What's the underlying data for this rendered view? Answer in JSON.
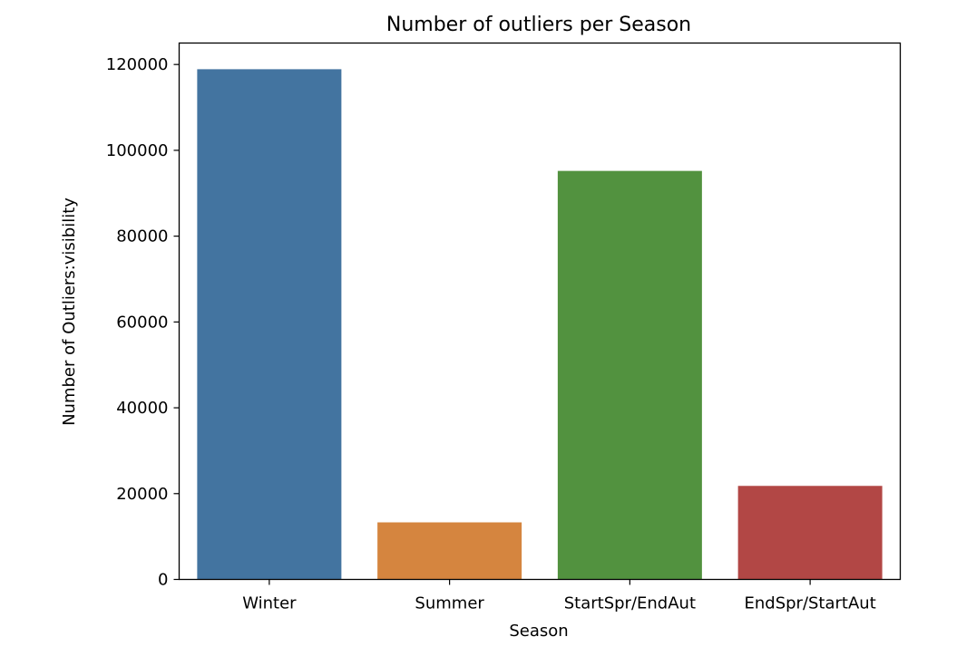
{
  "chart_data": {
    "type": "bar",
    "title": "Number of outliers per Season",
    "xlabel": "Season",
    "ylabel": "Number of Outliers:visibility",
    "categories": [
      "Winter",
      "Summer",
      "StartSpr/EndAut",
      "EndSpr/StartAut"
    ],
    "values": [
      118900,
      13300,
      95200,
      21800
    ],
    "colors": [
      "#4374a0",
      "#d5853f",
      "#52923f",
      "#b24745"
    ],
    "ylim": [
      0,
      125000
    ],
    "yticks": [
      0,
      20000,
      40000,
      60000,
      80000,
      100000,
      120000
    ],
    "ytick_labels": [
      "0",
      "20000",
      "40000",
      "60000",
      "80000",
      "100000",
      "120000"
    ],
    "grid": false,
    "legend": "none"
  }
}
